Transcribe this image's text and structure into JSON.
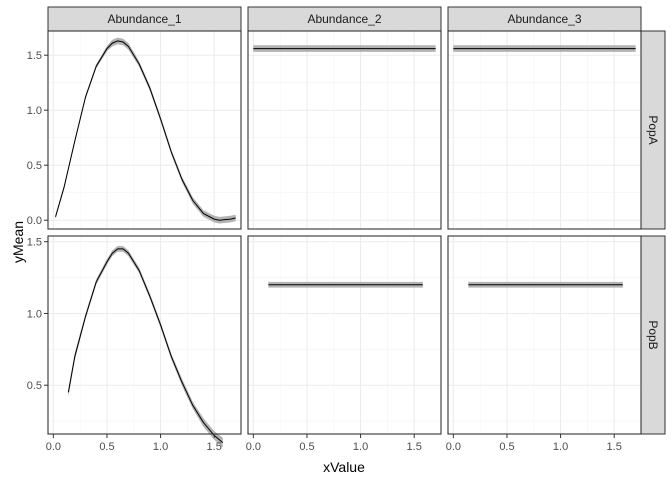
{
  "chart_data": {
    "type": "line",
    "facet_columns": [
      "Abundance_1",
      "Abundance_2",
      "Abundance_3"
    ],
    "facet_rows": [
      "PopA",
      "PopB"
    ],
    "xlabel": "xValue",
    "ylabel": "yMean",
    "x_ticks": [
      0.0,
      0.5,
      1.0,
      1.5
    ],
    "x_tick_labels": [
      "0.0",
      "0.5",
      "1.0",
      "1.5"
    ],
    "xlim": [
      -0.05,
      1.75
    ],
    "rows": [
      {
        "name": "PopA",
        "ylim": [
          -0.08,
          1.72
        ],
        "y_ticks": [
          0.0,
          0.5,
          1.0,
          1.5
        ],
        "y_tick_labels": [
          "0.0",
          "0.5",
          "1.0",
          "1.5"
        ],
        "panels": [
          {
            "facet": "Abundance_1",
            "x": [
              0.02,
              0.1,
              0.2,
              0.3,
              0.4,
              0.5,
              0.55,
              0.6,
              0.65,
              0.7,
              0.8,
              0.9,
              1.0,
              1.1,
              1.2,
              1.3,
              1.4,
              1.5,
              1.55,
              1.6,
              1.65,
              1.7
            ],
            "y": [
              0.03,
              0.3,
              0.72,
              1.12,
              1.4,
              1.56,
              1.61,
              1.63,
              1.62,
              1.58,
              1.42,
              1.2,
              0.92,
              0.62,
              0.37,
              0.18,
              0.06,
              0.01,
              0.0,
              0.005,
              0.01,
              0.02
            ],
            "band": [
              0.02,
              0.02,
              0.02,
              0.02,
              0.02,
              0.025,
              0.03,
              0.03,
              0.03,
              0.03,
              0.025,
              0.025,
              0.025,
              0.025,
              0.025,
              0.03,
              0.03,
              0.03,
              0.03,
              0.03,
              0.03,
              0.03
            ]
          },
          {
            "facet": "Abundance_2",
            "x": [
              0.0,
              1.7
            ],
            "y": [
              1.56,
              1.56
            ],
            "band": [
              0.03,
              0.03
            ]
          },
          {
            "facet": "Abundance_3",
            "x": [
              0.0,
              1.7
            ],
            "y": [
              1.56,
              1.56
            ],
            "band": [
              0.03,
              0.03
            ]
          }
        ]
      },
      {
        "name": "PopB",
        "ylim": [
          0.16,
          1.54
        ],
        "y_ticks": [
          0.5,
          1.0,
          1.5
        ],
        "y_tick_labels": [
          "0.5",
          "1.0",
          "1.5"
        ],
        "panels": [
          {
            "facet": "Abundance_1",
            "x": [
              0.14,
              0.2,
              0.3,
              0.4,
              0.5,
              0.55,
              0.6,
              0.65,
              0.7,
              0.8,
              0.9,
              1.0,
              1.1,
              1.2,
              1.3,
              1.4,
              1.5,
              1.58
            ],
            "y": [
              0.45,
              0.7,
              0.98,
              1.22,
              1.36,
              1.42,
              1.45,
              1.45,
              1.42,
              1.3,
              1.12,
              0.92,
              0.7,
              0.52,
              0.36,
              0.24,
              0.15,
              0.1
            ],
            "band": [
              0.03,
              0.025,
              0.02,
              0.02,
              0.02,
              0.02,
              0.02,
              0.02,
              0.02,
              0.02,
              0.02,
              0.02,
              0.02,
              0.025,
              0.025,
              0.03,
              0.03,
              0.035
            ]
          },
          {
            "facet": "Abundance_2",
            "x": [
              0.14,
              1.58
            ],
            "y": [
              1.2,
              1.2
            ],
            "band": [
              0.02,
              0.02
            ]
          },
          {
            "facet": "Abundance_3",
            "x": [
              0.14,
              1.58
            ],
            "y": [
              1.2,
              1.2
            ],
            "band": [
              0.02,
              0.02
            ]
          }
        ]
      }
    ]
  }
}
